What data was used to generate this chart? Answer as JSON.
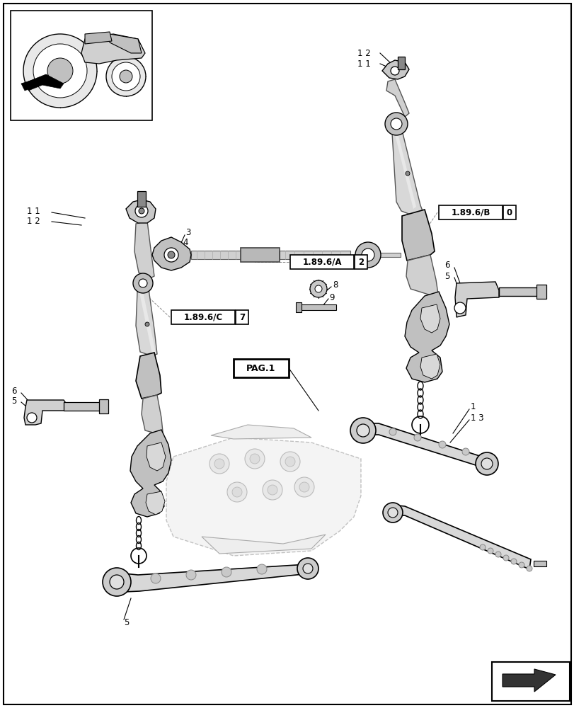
{
  "bg_color": "#ffffff",
  "lc": "#000000",
  "pc": "#d8d8d8",
  "ec": "#333333",
  "label_A": "1.89.6/A",
  "label_B": "1.89.6/B",
  "label_C": "1.89.6/C",
  "label_pag": "PAG.1",
  "num_A": "2",
  "num_B": "0",
  "num_C": "7"
}
